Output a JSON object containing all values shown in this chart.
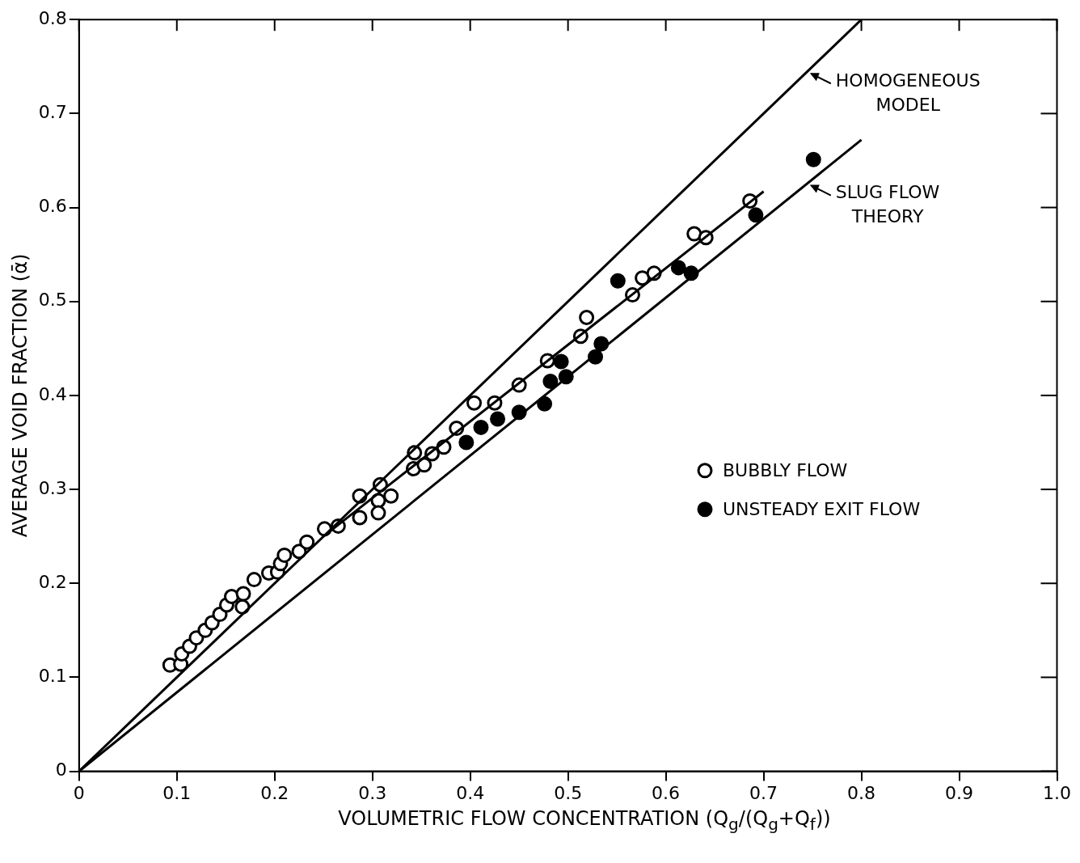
{
  "chart_data": {
    "type": "scatter",
    "xlabel": "VOLUMETRIC FLOW CONCENTRATION (Q$_{g}$/(Q$_{g}$+Q$_{f}$))",
    "ylabel": "AVERAGE VOID FRACTION (ᾱ)",
    "xlim": [
      0,
      1
    ],
    "xticks": [
      0,
      0.1,
      0.2,
      0.3,
      0.4,
      0.5,
      0.6,
      0.7,
      0.8,
      0.9,
      {
        "value": 1,
        "label": "1.0"
      }
    ],
    "ylim": [
      0,
      0.8
    ],
    "yticks": [
      0,
      0.1,
      0.2,
      0.3,
      0.4,
      0.5,
      0.6,
      0.7,
      0.8
    ],
    "grid": false,
    "legend": "right",
    "series": [
      {
        "type": "line",
        "marker": "none",
        "name": "HOMOGENEOUS MODEL",
        "color": "#000000",
        "x": [
          0,
          0.8
        ],
        "values": [
          0,
          0.8
        ]
      },
      {
        "type": "line",
        "marker": "none",
        "name": "SLUG FLOW THEORY",
        "color": "#000000",
        "x": [
          0,
          0.8
        ],
        "values": [
          0,
          0.672
        ]
      },
      {
        "type": "line",
        "marker": "none",
        "color": "#000000",
        "x": [
          0.25,
          0.7
        ],
        "values": [
          0.25,
          0.617
        ]
      },
      {
        "marker": "circle",
        "name": "BUBBLY FLOW",
        "color": "#ffffff",
        "x": [
          0.093,
          0.104,
          0.105,
          0.113,
          0.12,
          0.129,
          0.136,
          0.144,
          0.151,
          0.156,
          0.167,
          0.168,
          0.179,
          0.194,
          0.203,
          0.206,
          0.21,
          0.225,
          0.233,
          0.251,
          0.265,
          0.287,
          0.287,
          0.306,
          0.306,
          0.308,
          0.319,
          0.342,
          0.343,
          0.353,
          0.361,
          0.373,
          0.386,
          0.404,
          0.425,
          0.45,
          0.479,
          0.513,
          0.519,
          0.566,
          0.576,
          0.588,
          0.629,
          0.641,
          0.686
        ],
        "values": [
          0.113,
          0.114,
          0.125,
          0.133,
          0.142,
          0.15,
          0.158,
          0.167,
          0.177,
          0.186,
          0.175,
          0.189,
          0.204,
          0.211,
          0.212,
          0.221,
          0.23,
          0.234,
          0.244,
          0.258,
          0.261,
          0.293,
          0.27,
          0.288,
          0.275,
          0.305,
          0.293,
          0.322,
          0.339,
          0.326,
          0.338,
          0.345,
          0.365,
          0.392,
          0.392,
          0.411,
          0.437,
          0.463,
          0.483,
          0.507,
          0.525,
          0.53,
          0.572,
          0.568,
          0.607
        ]
      },
      {
        "marker": "circle",
        "name": "UNSTEADY EXIT FLOW",
        "color": "#000000",
        "x": [
          0.396,
          0.411,
          0.428,
          0.45,
          0.476,
          0.482,
          0.493,
          0.498,
          0.528,
          0.534,
          0.551,
          0.613,
          0.626,
          0.692,
          0.751
        ],
        "values": [
          0.35,
          0.366,
          0.375,
          0.382,
          0.391,
          0.415,
          0.436,
          0.42,
          0.441,
          0.455,
          0.522,
          0.536,
          0.53,
          0.592,
          0.651
        ]
      }
    ]
  }
}
